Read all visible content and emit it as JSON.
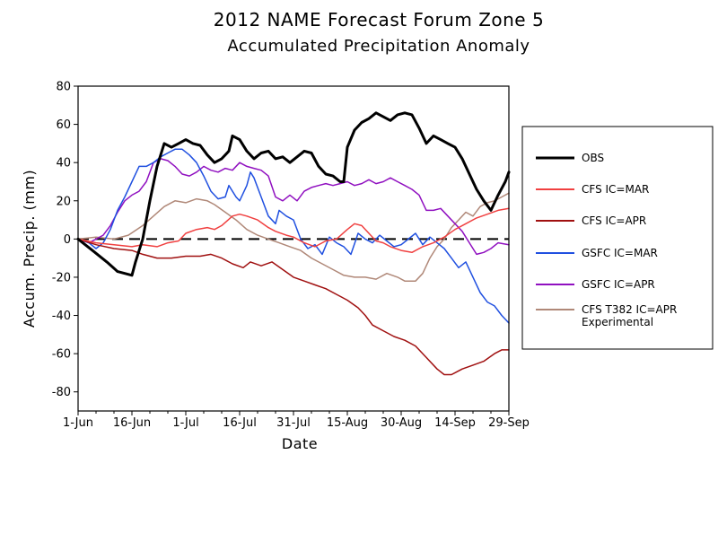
{
  "chart_data": {
    "type": "line",
    "title": "2012 NAME Forecast Forum Zone 5",
    "subtitle": "Accumulated Precipitation Anomaly",
    "xlabel": "Date",
    "ylabel": "Accum. Precip. (mm)",
    "xlim": [
      0,
      120
    ],
    "ylim": [
      -90,
      80
    ],
    "x_ticks": [
      {
        "x": 0,
        "label": "1-Jun"
      },
      {
        "x": 15,
        "label": "16-Jun"
      },
      {
        "x": 30,
        "label": "1-Jul"
      },
      {
        "x": 45,
        "label": "16-Jul"
      },
      {
        "x": 60,
        "label": "31-Jul"
      },
      {
        "x": 75,
        "label": "15-Aug"
      },
      {
        "x": 90,
        "label": "30-Aug"
      },
      {
        "x": 105,
        "label": "14-Sep"
      },
      {
        "x": 120,
        "label": "29-Sep"
      }
    ],
    "y_ticks": [
      -80,
      -60,
      -40,
      -20,
      0,
      20,
      40,
      60,
      80
    ],
    "reference_line": {
      "y": 0,
      "style": "dashed"
    },
    "legend_position": "right",
    "series": [
      {
        "name": "OBS",
        "color": "#000000",
        "width": 3,
        "points": [
          [
            0,
            0
          ],
          [
            4,
            -6
          ],
          [
            8,
            -12
          ],
          [
            11,
            -17
          ],
          [
            13,
            -18
          ],
          [
            15,
            -19
          ],
          [
            16,
            -12
          ],
          [
            18,
            0
          ],
          [
            20,
            20
          ],
          [
            22,
            38
          ],
          [
            24,
            50
          ],
          [
            26,
            48
          ],
          [
            28,
            50
          ],
          [
            30,
            52
          ],
          [
            32,
            50
          ],
          [
            34,
            49
          ],
          [
            36,
            44
          ],
          [
            38,
            40
          ],
          [
            40,
            42
          ],
          [
            42,
            46
          ],
          [
            43,
            54
          ],
          [
            45,
            52
          ],
          [
            47,
            46
          ],
          [
            49,
            42
          ],
          [
            51,
            45
          ],
          [
            53,
            46
          ],
          [
            55,
            42
          ],
          [
            57,
            43
          ],
          [
            59,
            40
          ],
          [
            61,
            43
          ],
          [
            63,
            46
          ],
          [
            65,
            45
          ],
          [
            67,
            38
          ],
          [
            69,
            34
          ],
          [
            71,
            33
          ],
          [
            73,
            30
          ],
          [
            74,
            30
          ],
          [
            75,
            48
          ],
          [
            77,
            57
          ],
          [
            79,
            61
          ],
          [
            81,
            63
          ],
          [
            83,
            66
          ],
          [
            85,
            64
          ],
          [
            87,
            62
          ],
          [
            89,
            65
          ],
          [
            91,
            66
          ],
          [
            93,
            65
          ],
          [
            95,
            58
          ],
          [
            97,
            50
          ],
          [
            99,
            54
          ],
          [
            101,
            52
          ],
          [
            103,
            50
          ],
          [
            105,
            48
          ],
          [
            107,
            42
          ],
          [
            109,
            34
          ],
          [
            111,
            26
          ],
          [
            113,
            20
          ],
          [
            115,
            15
          ],
          [
            117,
            23
          ],
          [
            119,
            30
          ],
          [
            120,
            35
          ]
        ]
      },
      {
        "name": "CFS IC=MAR",
        "color": "#f04040",
        "width": 1.5,
        "points": [
          [
            0,
            0
          ],
          [
            5,
            -2
          ],
          [
            10,
            -3
          ],
          [
            15,
            -4
          ],
          [
            18,
            -3
          ],
          [
            22,
            -4
          ],
          [
            25,
            -2
          ],
          [
            28,
            -1
          ],
          [
            30,
            3
          ],
          [
            33,
            5
          ],
          [
            36,
            6
          ],
          [
            38,
            5
          ],
          [
            40,
            7
          ],
          [
            43,
            12
          ],
          [
            45,
            13
          ],
          [
            47,
            12
          ],
          [
            50,
            10
          ],
          [
            53,
            6
          ],
          [
            55,
            4
          ],
          [
            58,
            2
          ],
          [
            60,
            1
          ],
          [
            63,
            -2
          ],
          [
            66,
            -4
          ],
          [
            69,
            -1
          ],
          [
            72,
            0
          ],
          [
            75,
            5
          ],
          [
            77,
            8
          ],
          [
            79,
            7
          ],
          [
            81,
            3
          ],
          [
            83,
            -1
          ],
          [
            85,
            -2
          ],
          [
            87,
            -4
          ],
          [
            90,
            -6
          ],
          [
            93,
            -7
          ],
          [
            96,
            -4
          ],
          [
            99,
            -2
          ],
          [
            102,
            1
          ],
          [
            105,
            5
          ],
          [
            108,
            8
          ],
          [
            111,
            11
          ],
          [
            114,
            13
          ],
          [
            117,
            15
          ],
          [
            120,
            16
          ]
        ]
      },
      {
        "name": "CFS IC=APR",
        "color": "#a01010",
        "width": 1.5,
        "points": [
          [
            0,
            0
          ],
          [
            5,
            -3
          ],
          [
            10,
            -5
          ],
          [
            15,
            -6
          ],
          [
            18,
            -8
          ],
          [
            22,
            -10
          ],
          [
            26,
            -10
          ],
          [
            30,
            -9
          ],
          [
            34,
            -9
          ],
          [
            37,
            -8
          ],
          [
            40,
            -10
          ],
          [
            43,
            -13
          ],
          [
            46,
            -15
          ],
          [
            48,
            -12
          ],
          [
            51,
            -14
          ],
          [
            54,
            -12
          ],
          [
            57,
            -16
          ],
          [
            60,
            -20
          ],
          [
            63,
            -22
          ],
          [
            66,
            -24
          ],
          [
            69,
            -26
          ],
          [
            72,
            -29
          ],
          [
            75,
            -32
          ],
          [
            78,
            -36
          ],
          [
            80,
            -40
          ],
          [
            82,
            -45
          ],
          [
            85,
            -48
          ],
          [
            88,
            -51
          ],
          [
            91,
            -53
          ],
          [
            94,
            -56
          ],
          [
            97,
            -62
          ],
          [
            100,
            -68
          ],
          [
            102,
            -71
          ],
          [
            104,
            -71
          ],
          [
            107,
            -68
          ],
          [
            110,
            -66
          ],
          [
            113,
            -64
          ],
          [
            116,
            -60
          ],
          [
            118,
            -58
          ],
          [
            120,
            -58
          ]
        ]
      },
      {
        "name": "GSFC IC=MAR",
        "color": "#2050e0",
        "width": 1.5,
        "points": [
          [
            0,
            0
          ],
          [
            3,
            -2
          ],
          [
            5,
            -5
          ],
          [
            7,
            -2
          ],
          [
            9,
            5
          ],
          [
            11,
            15
          ],
          [
            13,
            22
          ],
          [
            15,
            30
          ],
          [
            17,
            38
          ],
          [
            19,
            38
          ],
          [
            21,
            40
          ],
          [
            23,
            43
          ],
          [
            25,
            45
          ],
          [
            27,
            47
          ],
          [
            29,
            47
          ],
          [
            31,
            44
          ],
          [
            33,
            40
          ],
          [
            35,
            33
          ],
          [
            37,
            25
          ],
          [
            39,
            21
          ],
          [
            41,
            22
          ],
          [
            42,
            28
          ],
          [
            44,
            22
          ],
          [
            45,
            20
          ],
          [
            47,
            28
          ],
          [
            48,
            35
          ],
          [
            49,
            32
          ],
          [
            51,
            22
          ],
          [
            53,
            12
          ],
          [
            55,
            8
          ],
          [
            56,
            15
          ],
          [
            58,
            12
          ],
          [
            60,
            10
          ],
          [
            62,
            0
          ],
          [
            64,
            -5
          ],
          [
            66,
            -3
          ],
          [
            68,
            -8
          ],
          [
            70,
            1
          ],
          [
            72,
            -2
          ],
          [
            74,
            -4
          ],
          [
            76,
            -8
          ],
          [
            78,
            3
          ],
          [
            80,
            0
          ],
          [
            82,
            -2
          ],
          [
            84,
            2
          ],
          [
            86,
            -1
          ],
          [
            88,
            -4
          ],
          [
            90,
            -3
          ],
          [
            92,
            0
          ],
          [
            94,
            3
          ],
          [
            96,
            -3
          ],
          [
            98,
            1
          ],
          [
            100,
            -2
          ],
          [
            102,
            -5
          ],
          [
            104,
            -10
          ],
          [
            106,
            -15
          ],
          [
            108,
            -12
          ],
          [
            110,
            -20
          ],
          [
            112,
            -28
          ],
          [
            114,
            -33
          ],
          [
            116,
            -35
          ],
          [
            118,
            -40
          ],
          [
            120,
            -44
          ]
        ]
      },
      {
        "name": "GSFC IC=APR",
        "color": "#9010c0",
        "width": 1.5,
        "points": [
          [
            0,
            0
          ],
          [
            3,
            -2
          ],
          [
            5,
            0
          ],
          [
            7,
            2
          ],
          [
            9,
            7
          ],
          [
            11,
            14
          ],
          [
            13,
            20
          ],
          [
            15,
            23
          ],
          [
            17,
            25
          ],
          [
            19,
            30
          ],
          [
            21,
            40
          ],
          [
            23,
            42
          ],
          [
            25,
            41
          ],
          [
            27,
            38
          ],
          [
            29,
            34
          ],
          [
            31,
            33
          ],
          [
            33,
            35
          ],
          [
            35,
            38
          ],
          [
            37,
            36
          ],
          [
            39,
            35
          ],
          [
            41,
            37
          ],
          [
            43,
            36
          ],
          [
            45,
            40
          ],
          [
            47,
            38
          ],
          [
            49,
            37
          ],
          [
            51,
            36
          ],
          [
            53,
            33
          ],
          [
            55,
            22
          ],
          [
            57,
            20
          ],
          [
            59,
            23
          ],
          [
            61,
            20
          ],
          [
            63,
            25
          ],
          [
            65,
            27
          ],
          [
            67,
            28
          ],
          [
            69,
            29
          ],
          [
            71,
            28
          ],
          [
            73,
            29
          ],
          [
            75,
            30
          ],
          [
            77,
            28
          ],
          [
            79,
            29
          ],
          [
            81,
            31
          ],
          [
            83,
            29
          ],
          [
            85,
            30
          ],
          [
            87,
            32
          ],
          [
            89,
            30
          ],
          [
            91,
            28
          ],
          [
            93,
            26
          ],
          [
            95,
            23
          ],
          [
            97,
            15
          ],
          [
            99,
            15
          ],
          [
            101,
            16
          ],
          [
            103,
            12
          ],
          [
            105,
            8
          ],
          [
            107,
            4
          ],
          [
            109,
            -2
          ],
          [
            111,
            -8
          ],
          [
            113,
            -7
          ],
          [
            115,
            -5
          ],
          [
            117,
            -2
          ],
          [
            120,
            -3
          ]
        ]
      },
      {
        "name": "CFS T382 IC=APR",
        "name_line2": "Experimental",
        "color": "#b08878",
        "width": 1.5,
        "points": [
          [
            0,
            0
          ],
          [
            5,
            1
          ],
          [
            10,
            0
          ],
          [
            14,
            2
          ],
          [
            18,
            7
          ],
          [
            21,
            12
          ],
          [
            24,
            17
          ],
          [
            27,
            20
          ],
          [
            30,
            19
          ],
          [
            33,
            21
          ],
          [
            36,
            20
          ],
          [
            38,
            18
          ],
          [
            41,
            14
          ],
          [
            44,
            10
          ],
          [
            47,
            5
          ],
          [
            50,
            2
          ],
          [
            53,
            0
          ],
          [
            56,
            -2
          ],
          [
            59,
            -4
          ],
          [
            62,
            -6
          ],
          [
            65,
            -10
          ],
          [
            68,
            -13
          ],
          [
            71,
            -16
          ],
          [
            74,
            -19
          ],
          [
            77,
            -20
          ],
          [
            80,
            -20
          ],
          [
            83,
            -21
          ],
          [
            86,
            -18
          ],
          [
            89,
            -20
          ],
          [
            91,
            -22
          ],
          [
            94,
            -22
          ],
          [
            96,
            -18
          ],
          [
            98,
            -10
          ],
          [
            100,
            -4
          ],
          [
            102,
            0
          ],
          [
            104,
            6
          ],
          [
            106,
            10
          ],
          [
            108,
            14
          ],
          [
            110,
            12
          ],
          [
            112,
            17
          ],
          [
            114,
            19
          ],
          [
            116,
            20
          ],
          [
            118,
            22
          ],
          [
            120,
            24
          ]
        ]
      }
    ]
  }
}
